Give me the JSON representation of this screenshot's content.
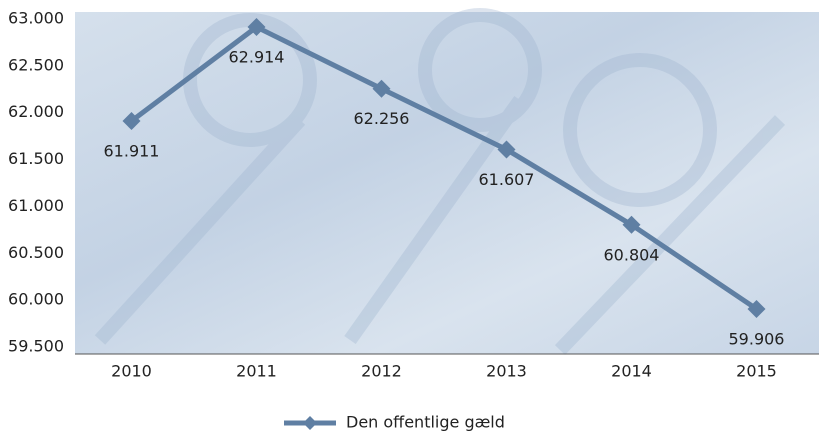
{
  "chart_data": {
    "type": "line",
    "categories": [
      "2010",
      "2011",
      "2012",
      "2013",
      "2014",
      "2015"
    ],
    "series": [
      {
        "name": "Den offentlige gæld",
        "color": "#5f7fa3",
        "values": [
          61911,
          62914,
          62256,
          61607,
          60804,
          59906
        ],
        "value_labels": [
          "61.911",
          "62.914",
          "62.256",
          "61.607",
          "60.804",
          "59.906"
        ]
      }
    ],
    "ylim": [
      59500,
      63000
    ],
    "yticks": [
      {
        "value": 59500,
        "label": "59.500"
      },
      {
        "value": 60000,
        "label": "60.000"
      },
      {
        "value": 60500,
        "label": "60.500"
      },
      {
        "value": 61000,
        "label": "61.000"
      },
      {
        "value": 61500,
        "label": "61.500"
      },
      {
        "value": 62000,
        "label": "62.000"
      },
      {
        "value": 62500,
        "label": "62.500"
      },
      {
        "value": 63000,
        "label": "63.000"
      }
    ],
    "legend": "bottom"
  }
}
